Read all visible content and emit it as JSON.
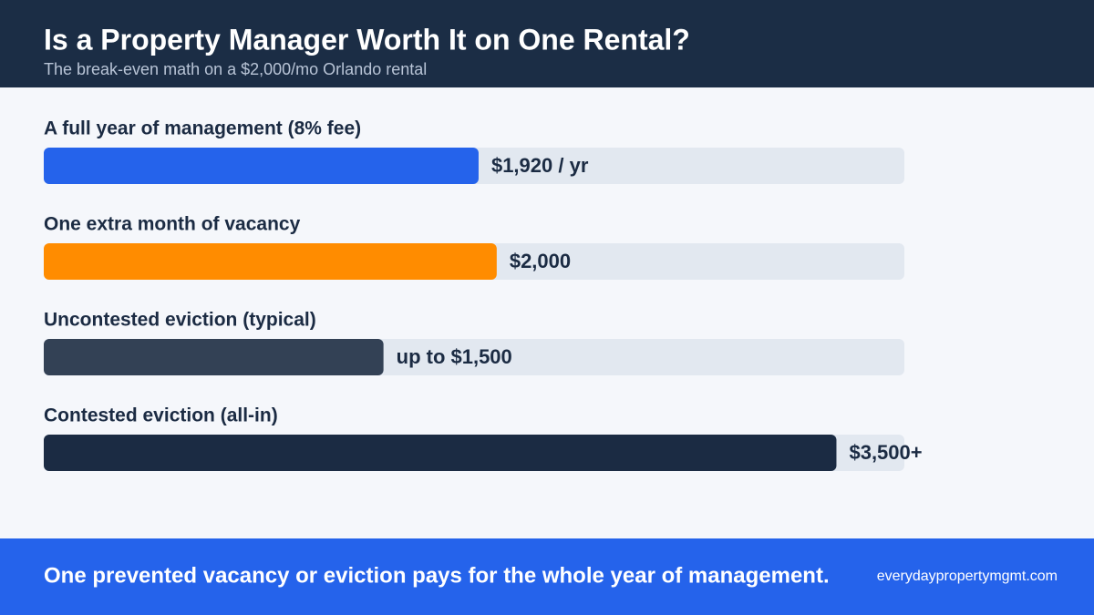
{
  "chart_data": {
    "type": "bar",
    "orientation": "horizontal",
    "title": "Is a Property Manager Worth It on One Rental?",
    "subtitle": "The break-even math on a $2,000/mo Orlando rental",
    "categories": [
      "A full year of management (8% fee)",
      "One extra month of vacancy",
      "Uncontested eviction (typical)",
      "Contested eviction (all-in)"
    ],
    "values": [
      1920,
      2000,
      1500,
      3500
    ],
    "value_labels": [
      "$1,920 / yr",
      "$2,000",
      "up to $1,500",
      "$3,500+"
    ],
    "colors": [
      "#2563eb",
      "#ff8c00",
      "#334155",
      "#1b2b43"
    ],
    "track_color": "#e2e8f0",
    "xlim": [
      0,
      3800
    ]
  },
  "footer": {
    "text": "One prevented vacancy or eviction pays for the whole year of management.",
    "source": "everydaypropertymgmt.com"
  }
}
